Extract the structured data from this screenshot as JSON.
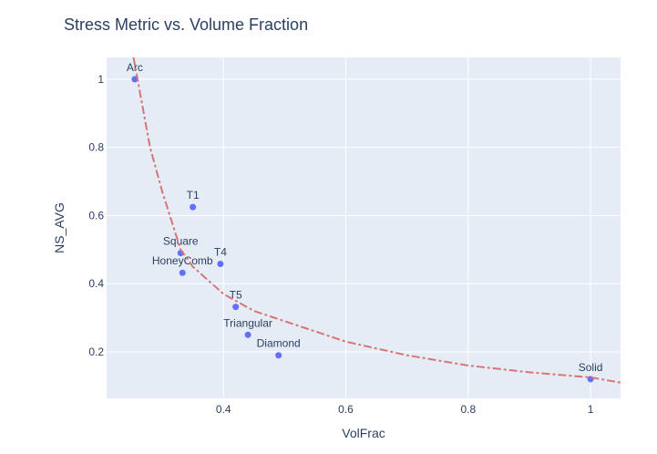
{
  "chart_data": {
    "type": "scatter",
    "title": "Stress Metric vs. Volume Fraction",
    "x_label": "VolFrac",
    "y_label": "NS_AVG",
    "xlim": [
      0.209,
      1.049
    ],
    "ylim": [
      0.0635,
      1.064
    ],
    "xticks": [
      0.4,
      0.6,
      0.8,
      1
    ],
    "yticks": [
      0.2,
      0.4,
      0.6,
      0.8,
      1
    ],
    "grid": true,
    "series": [
      {
        "mode": "markers",
        "color": "#636efa",
        "x": [
          0.255,
          0.35,
          0.33,
          0.395,
          0.333,
          0.42,
          0.44,
          0.49,
          1.0
        ],
        "values": [
          1.0,
          0.625,
          0.49,
          0.458,
          0.432,
          0.332,
          0.25,
          0.19,
          0.12
        ],
        "text": [
          "Arc",
          "T1",
          "Square",
          "T4",
          "HoneyComb",
          "T5",
          "Triangular",
          "Diamond",
          "Solid"
        ]
      },
      {
        "mode": "line",
        "color": "#d67575",
        "dash": "dashdot",
        "x": [
          0.253,
          0.28,
          0.3,
          0.33,
          0.35,
          0.4,
          0.45,
          0.5,
          0.6,
          0.7,
          0.8,
          0.9,
          1.0,
          1.049
        ],
        "values": [
          1.064,
          0.8,
          0.67,
          0.5,
          0.45,
          0.37,
          0.32,
          0.29,
          0.23,
          0.19,
          0.16,
          0.14,
          0.125,
          0.11
        ]
      }
    ]
  }
}
